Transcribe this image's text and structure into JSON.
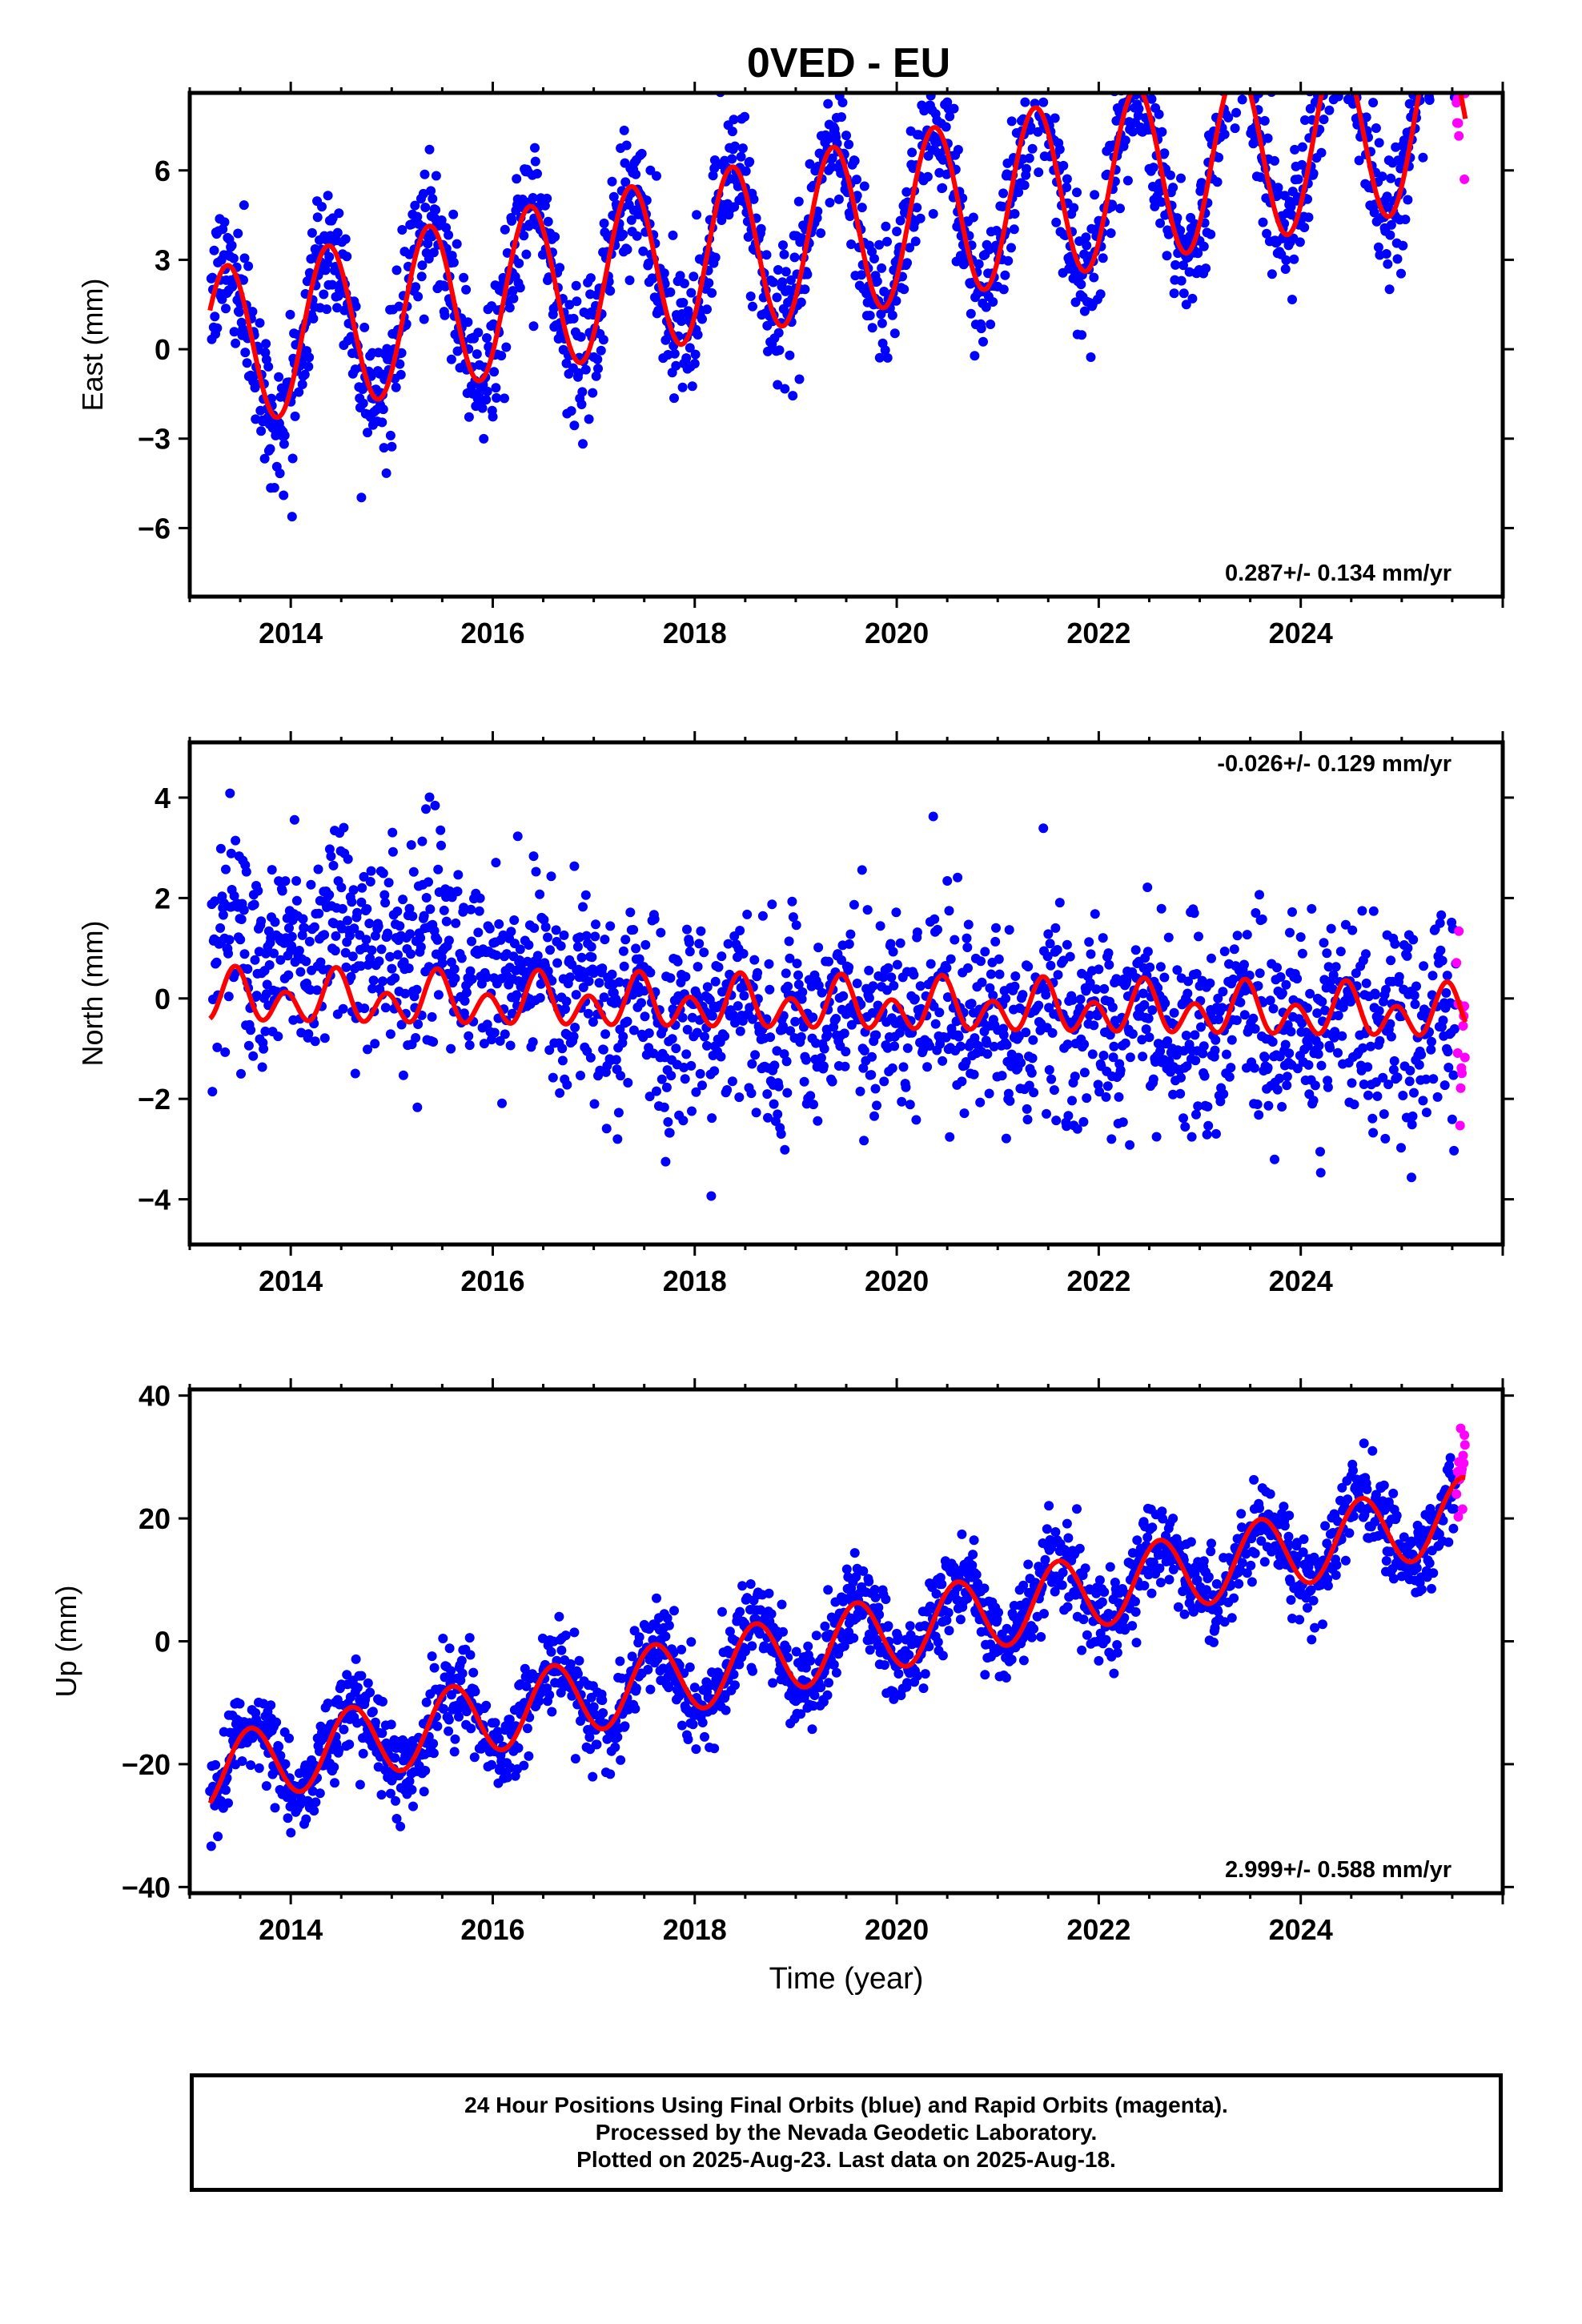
{
  "figure": {
    "title": "0VED - EU",
    "xlabel": "Time (year)"
  },
  "colors": {
    "final_orbits": "#0000ff",
    "rapid_orbits": "#ff00ff",
    "model_fit": "#ff0000",
    "frame": "#000000"
  },
  "chart_data": [
    {
      "type": "scatter",
      "panel": "east",
      "ylabel": "East (mm)",
      "xlim": [
        2013.0,
        2026.0
      ],
      "ylim": [
        -8.3,
        8.6
      ],
      "xticks": [
        2014,
        2016,
        2018,
        2020,
        2022,
        2024
      ],
      "yticks": [
        6,
        3,
        0,
        -3,
        -6
      ],
      "ytick_labels": [
        "6",
        "3",
        "0",
        "−3",
        "−6"
      ],
      "rate_label": "0.287+/- 0.134 mm/yr",
      "rate_label_position": "bottom-right",
      "x_start": 2013.2,
      "x_end": 2025.63,
      "rapid_start": 2025.54,
      "model": {
        "offset": -1.6,
        "rate": 0.287,
        "annual_amp_start": 2.7,
        "annual_amp_end": 3.0,
        "annual_peak_phase": 0.37
      },
      "series": [
        {
          "name": "Final Orbits (blue)",
          "approx_scatter_mm": 1.1
        },
        {
          "name": "Rapid Orbits (magenta)",
          "approx_scatter_mm": 1.3
        }
      ]
    },
    {
      "type": "scatter",
      "panel": "north",
      "ylabel": "North (mm)",
      "xlim": [
        2013.0,
        2026.0
      ],
      "ylim": [
        -4.9,
        5.1
      ],
      "xticks": [
        2014,
        2016,
        2018,
        2020,
        2022,
        2024
      ],
      "yticks": [
        4,
        2,
        0,
        -2,
        -4
      ],
      "ytick_labels": [
        "4",
        "2",
        "0",
        "−2",
        "−4"
      ],
      "rate_label": "-0.026+/- 0.129 mm/yr",
      "rate_label_position": "top-right",
      "x_start": 2013.2,
      "x_end": 2025.63,
      "rapid_start": 2025.54,
      "model": {
        "offset": 0.15,
        "rate": -0.026,
        "annual_amp": 0.25,
        "semiannual_amp": 0.4
      },
      "series": [
        {
          "name": "Final Orbits (blue)",
          "approx_scatter_mm": 1.0
        },
        {
          "name": "Rapid Orbits (magenta)",
          "approx_scatter_mm": 1.2
        }
      ]
    },
    {
      "type": "scatter",
      "panel": "up",
      "ylabel": "Up (mm)",
      "xlim": [
        2013.0,
        2026.0
      ],
      "ylim": [
        -41,
        41
      ],
      "xticks": [
        2014,
        2016,
        2018,
        2020,
        2022,
        2024
      ],
      "yticks": [
        40,
        20,
        0,
        -20,
        -40
      ],
      "ytick_labels": [
        "40",
        "20",
        "0",
        "−20",
        "−40"
      ],
      "rate_label": "2.999+/- 0.588 mm/yr",
      "rate_label_position": "bottom-right",
      "x_start": 2013.2,
      "x_end": 2025.63,
      "rapid_start": 2025.54,
      "model": {
        "offset": -17.0,
        "rate": 2.999,
        "annual_amp": 6.0,
        "annual_peak_phase": 0.6
      },
      "series": [
        {
          "name": "Final Orbits (blue)",
          "approx_scatter_mm": 3.5
        },
        {
          "name": "Rapid Orbits (magenta)",
          "approx_scatter_mm": 4.0
        }
      ]
    }
  ],
  "footer": {
    "line1": "24 Hour Positions Using Final Orbits (blue) and Rapid Orbits (magenta).",
    "line2": "Processed by the Nevada Geodetic Laboratory.",
    "line3": "Plotted on 2025-Aug-23. Last data on 2025-Aug-18."
  }
}
